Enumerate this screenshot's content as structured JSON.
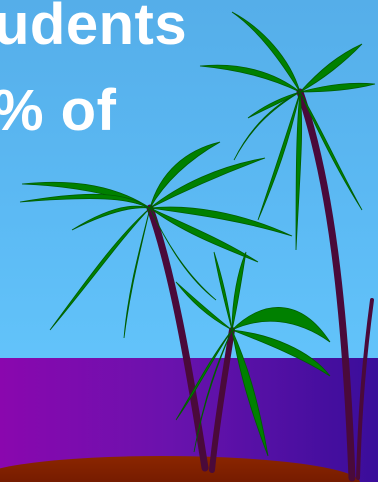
{
  "slide": {
    "text_line_1": "udents",
    "text_line_2": "% of"
  },
  "colors": {
    "sky": "#5bb8f0",
    "sea": "#6a12ad",
    "sand": "#7a1c00",
    "leaf": "#008000",
    "trunk": "#4a0a3a",
    "text": "#ffffff"
  },
  "icons": [
    "palm-tree-icon"
  ]
}
